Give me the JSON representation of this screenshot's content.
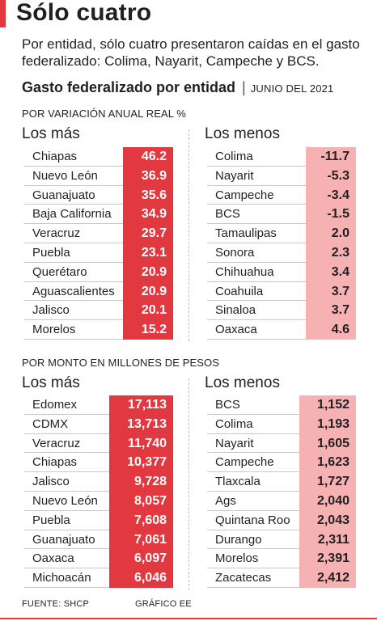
{
  "header": {
    "title": "Sólo cuatro",
    "lead": "Por entidad, sólo cuatro presentaron caídas en el gasto federalizado: Colima, Nayarit, Campeche y BCS."
  },
  "chart_header": {
    "title": "Gasto federalizado por entidad",
    "separator": "|",
    "date": "JUNIO DEL 2021"
  },
  "colors": {
    "accent": "#e2383f",
    "strong_red": "#e2383f",
    "soft_pink": "#f6b1b3",
    "text": "#231f20"
  },
  "chart_data": [
    {
      "type": "table",
      "section_label": "POR VARIACIÓN ANUAL REAL %",
      "groups": [
        {
          "heading": "Los más",
          "rows": [
            {
              "name": "Chiapas",
              "value": "46.2"
            },
            {
              "name": "Nuevo León",
              "value": "36.9"
            },
            {
              "name": "Guanajuato",
              "value": "35.6"
            },
            {
              "name": "Baja California",
              "value": "34.9"
            },
            {
              "name": "Veracruz",
              "value": "29.7"
            },
            {
              "name": "Puebla",
              "value": "23.1"
            },
            {
              "name": "Querétaro",
              "value": "20.9"
            },
            {
              "name": "Aguascalientes",
              "value": "20.9"
            },
            {
              "name": "Jalisco",
              "value": "20.1"
            },
            {
              "name": "Morelos",
              "value": "15.2"
            }
          ]
        },
        {
          "heading": "Los menos",
          "rows": [
            {
              "name": "Colima",
              "value": "-11.7"
            },
            {
              "name": "Nayarit",
              "value": "-5.3"
            },
            {
              "name": "Campeche",
              "value": "-3.4"
            },
            {
              "name": "BCS",
              "value": "-1.5"
            },
            {
              "name": "Tamaulipas",
              "value": "2.0"
            },
            {
              "name": "Sonora",
              "value": "2.3"
            },
            {
              "name": "Chihuahua",
              "value": "3.4"
            },
            {
              "name": "Coahuila",
              "value": "3.7"
            },
            {
              "name": "Sinaloa",
              "value": "3.7"
            },
            {
              "name": "Oaxaca",
              "value": "4.6"
            }
          ]
        }
      ]
    },
    {
      "type": "table",
      "section_label": "POR MONTO EN MILLONES DE PESOS",
      "groups": [
        {
          "heading": "Los más",
          "rows": [
            {
              "name": "Edomex",
              "value": "17,113"
            },
            {
              "name": "CDMX",
              "value": "13,713"
            },
            {
              "name": "Veracruz",
              "value": "11,740"
            },
            {
              "name": "Chiapas",
              "value": "10,377"
            },
            {
              "name": "Jalisco",
              "value": "9,728"
            },
            {
              "name": "Nuevo León",
              "value": "8,057"
            },
            {
              "name": "Puebla",
              "value": "7,608"
            },
            {
              "name": "Guanajuato",
              "value": "7,061"
            },
            {
              "name": "Oaxaca",
              "value": "6,097"
            },
            {
              "name": "Michoacán",
              "value": "6,046"
            }
          ]
        },
        {
          "heading": "Los menos",
          "rows": [
            {
              "name": "BCS",
              "value": "1,152"
            },
            {
              "name": "Colima",
              "value": "1,193"
            },
            {
              "name": "Nayarit",
              "value": "1,605"
            },
            {
              "name": "Campeche",
              "value": "1,623"
            },
            {
              "name": "Tlaxcala",
              "value": "1,727"
            },
            {
              "name": "Ags",
              "value": "2,040"
            },
            {
              "name": "Quintana Roo",
              "value": "2,043"
            },
            {
              "name": "Durango",
              "value": "2,311"
            },
            {
              "name": "Morelos",
              "value": "2,391"
            },
            {
              "name": "Zacatecas",
              "value": "2,412"
            }
          ]
        }
      ]
    }
  ],
  "footer": {
    "source": "FUENTE: SHCP",
    "credit": "GRÁFICO EE"
  }
}
